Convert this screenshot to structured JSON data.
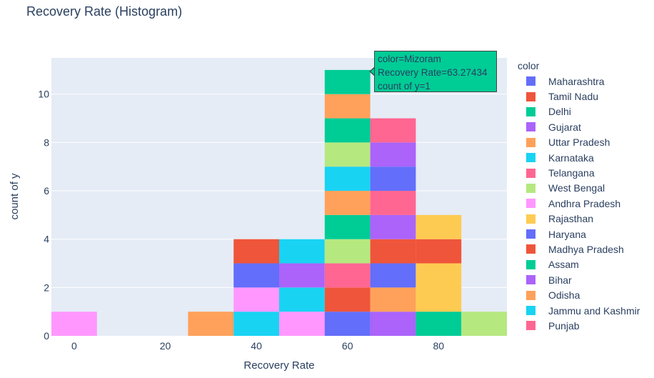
{
  "chart_data": {
    "type": "bar",
    "title": "Recovery Rate (Histogram)",
    "xlabel": "Recovery Rate",
    "ylabel": "count of y",
    "xlim": [
      -5,
      95
    ],
    "ylim": [
      0,
      11.5
    ],
    "xticks": [
      0,
      20,
      40,
      60,
      80
    ],
    "yticks": [
      0,
      2,
      4,
      6,
      8,
      10
    ],
    "bin_width": 10,
    "barmode": "stack",
    "grid": true,
    "legend_title": "color",
    "legend_position": "right",
    "series": [
      {
        "name": "Maharashtra",
        "color": "#636efa",
        "bins": [
          [
            60,
            1
          ]
        ]
      },
      {
        "name": "Tamil Nadu",
        "color": "#ef553b",
        "bins": [
          [
            60,
            1
          ]
        ]
      },
      {
        "name": "Delhi",
        "color": "#00cc96",
        "bins": [
          [
            80,
            1
          ]
        ]
      },
      {
        "name": "Gujarat",
        "color": "#ab63fa",
        "bins": [
          [
            70,
            1
          ]
        ]
      },
      {
        "name": "Uttar Pradesh",
        "color": "#ffa15a",
        "bins": [
          [
            70,
            1
          ]
        ]
      },
      {
        "name": "Karnataka",
        "color": "#19d3f3",
        "bins": [
          [
            40,
            1
          ]
        ]
      },
      {
        "name": "Telangana",
        "color": "#ff6692",
        "bins": [
          [
            60,
            1
          ]
        ]
      },
      {
        "name": "West Bengal",
        "color": "#b6e880",
        "bins": [
          [
            90,
            1
          ]
        ]
      },
      {
        "name": "Andhra Pradesh",
        "color": "#ff97ff",
        "bins": [
          [
            50,
            1
          ]
        ]
      },
      {
        "name": "Rajasthan",
        "color": "#fecb52",
        "bins": [
          [
            80,
            1
          ]
        ]
      },
      {
        "name": "Haryana",
        "color": "#636efa",
        "bins": [
          [
            70,
            1
          ]
        ]
      },
      {
        "name": "Madhya Pradesh",
        "color": "#ef553b",
        "bins": [
          [
            70,
            1
          ]
        ]
      },
      {
        "name": "Assam",
        "color": "#00cc96",
        "bins": [
          [
            60,
            1
          ]
        ]
      },
      {
        "name": "Bihar",
        "color": "#ab63fa",
        "bins": [
          [
            70,
            1
          ]
        ]
      },
      {
        "name": "Odisha",
        "color": "#ffa15a",
        "bins": [
          [
            60,
            1
          ]
        ]
      },
      {
        "name": "Jammu and Kashmir",
        "color": "#19d3f3",
        "bins": [
          [
            50,
            1
          ]
        ]
      },
      {
        "name": "Punjab",
        "color": "#ff6692",
        "bins": [
          [
            70,
            1
          ]
        ]
      }
    ],
    "bars": [
      {
        "x": 0,
        "color": "#ff97ff",
        "y0": 0,
        "y1": 1
      },
      {
        "x": 30,
        "color": "#ffa15a",
        "y0": 0,
        "y1": 1
      },
      {
        "x": 40,
        "color": "#19d3f3",
        "y0": 0,
        "y1": 1
      },
      {
        "x": 40,
        "color": "#ff97ff",
        "y0": 1,
        "y1": 2
      },
      {
        "x": 40,
        "color": "#636efa",
        "y0": 2,
        "y1": 3
      },
      {
        "x": 40,
        "color": "#ef553b",
        "y0": 3,
        "y1": 4
      },
      {
        "x": 50,
        "color": "#ff97ff",
        "y0": 0,
        "y1": 1
      },
      {
        "x": 50,
        "color": "#19d3f3",
        "y0": 1,
        "y1": 2
      },
      {
        "x": 50,
        "color": "#ab63fa",
        "y0": 2,
        "y1": 3
      },
      {
        "x": 50,
        "color": "#19d3f3",
        "y0": 3,
        "y1": 4
      },
      {
        "x": 60,
        "color": "#636efa",
        "y0": 0,
        "y1": 1
      },
      {
        "x": 60,
        "color": "#ef553b",
        "y0": 1,
        "y1": 2
      },
      {
        "x": 60,
        "color": "#ff6692",
        "y0": 2,
        "y1": 3
      },
      {
        "x": 60,
        "color": "#b6e880",
        "y0": 3,
        "y1": 4
      },
      {
        "x": 60,
        "color": "#00cc96",
        "y0": 4,
        "y1": 5
      },
      {
        "x": 60,
        "color": "#ffa15a",
        "y0": 5,
        "y1": 6
      },
      {
        "x": 60,
        "color": "#19d3f3",
        "y0": 6,
        "y1": 7
      },
      {
        "x": 60,
        "color": "#b6e880",
        "y0": 7,
        "y1": 8
      },
      {
        "x": 60,
        "color": "#00cc96",
        "y0": 8,
        "y1": 9
      },
      {
        "x": 60,
        "color": "#ffa15a",
        "y0": 9,
        "y1": 10
      },
      {
        "x": 60,
        "color": "#00cc96",
        "y0": 10,
        "y1": 11
      },
      {
        "x": 70,
        "color": "#ab63fa",
        "y0": 0,
        "y1": 1
      },
      {
        "x": 70,
        "color": "#ffa15a",
        "y0": 1,
        "y1": 2
      },
      {
        "x": 70,
        "color": "#636efa",
        "y0": 2,
        "y1": 3
      },
      {
        "x": 70,
        "color": "#ef553b",
        "y0": 3,
        "y1": 4
      },
      {
        "x": 70,
        "color": "#ab63fa",
        "y0": 4,
        "y1": 5
      },
      {
        "x": 70,
        "color": "#ff6692",
        "y0": 5,
        "y1": 6
      },
      {
        "x": 70,
        "color": "#636efa",
        "y0": 6,
        "y1": 7
      },
      {
        "x": 70,
        "color": "#ab63fa",
        "y0": 7,
        "y1": 8
      },
      {
        "x": 70,
        "color": "#ff6692",
        "y0": 8,
        "y1": 9
      },
      {
        "x": 80,
        "color": "#00cc96",
        "y0": 0,
        "y1": 1
      },
      {
        "x": 80,
        "color": "#fecb52",
        "y0": 1,
        "y1": 3
      },
      {
        "x": 80,
        "color": "#ef553b",
        "y0": 3,
        "y1": 4
      },
      {
        "x": 80,
        "color": "#fecb52",
        "y0": 4,
        "y1": 5
      },
      {
        "x": 90,
        "color": "#b6e880",
        "y0": 0,
        "y1": 1
      }
    ],
    "tooltip": {
      "lines": [
        "color=Mizoram",
        "Recovery Rate=63.27434",
        "count of y=1"
      ],
      "color": "#00cc96"
    }
  }
}
